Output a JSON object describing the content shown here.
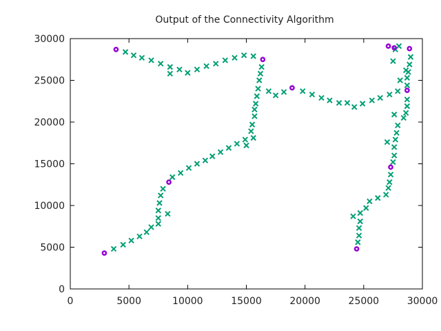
{
  "chart_data": {
    "type": "scatter",
    "title": "Output of the Connectivity Algorithm",
    "xlabel": "",
    "ylabel": "",
    "xlim": [
      0,
      30000
    ],
    "ylim": [
      0,
      30000
    ],
    "x_ticks": [
      0,
      5000,
      10000,
      15000,
      20000,
      25000,
      30000
    ],
    "y_ticks": [
      0,
      5000,
      10000,
      15000,
      20000,
      25000,
      30000
    ],
    "grid": false,
    "legend": "none",
    "series": [
      {
        "marker": "cross",
        "color": "#009e73",
        "points": [
          [
            3700,
            4800
          ],
          [
            4500,
            5300
          ],
          [
            5200,
            5800
          ],
          [
            5900,
            6300
          ],
          [
            6500,
            6800
          ],
          [
            6900,
            7400
          ],
          [
            7500,
            7800
          ],
          [
            7500,
            8500
          ],
          [
            8300,
            9000
          ],
          [
            7500,
            9400
          ],
          [
            7600,
            10300
          ],
          [
            7700,
            11200
          ],
          [
            7900,
            12000
          ],
          [
            8700,
            13400
          ],
          [
            9400,
            13900
          ],
          [
            10100,
            14500
          ],
          [
            10800,
            15000
          ],
          [
            11500,
            15400
          ],
          [
            12100,
            15900
          ],
          [
            12800,
            16400
          ],
          [
            13500,
            16900
          ],
          [
            14200,
            17400
          ],
          [
            15000,
            17200
          ],
          [
            14900,
            17900
          ],
          [
            15600,
            18100
          ],
          [
            15400,
            18900
          ],
          [
            15500,
            19700
          ],
          [
            15700,
            20700
          ],
          [
            15700,
            21500
          ],
          [
            15800,
            22200
          ],
          [
            15900,
            23100
          ],
          [
            16000,
            24000
          ],
          [
            16100,
            25000
          ],
          [
            16200,
            25800
          ],
          [
            16300,
            26600
          ],
          [
            15600,
            27900
          ],
          [
            14800,
            28000
          ],
          [
            14000,
            27700
          ],
          [
            13200,
            27400
          ],
          [
            12400,
            27000
          ],
          [
            11600,
            26700
          ],
          [
            10800,
            26300
          ],
          [
            10000,
            25900
          ],
          [
            9300,
            26300
          ],
          [
            8500,
            25800
          ],
          [
            8500,
            26600
          ],
          [
            7700,
            27000
          ],
          [
            6900,
            27400
          ],
          [
            6100,
            27700
          ],
          [
            5400,
            28000
          ],
          [
            4700,
            28400
          ],
          [
            16900,
            23700
          ],
          [
            17500,
            23200
          ],
          [
            18200,
            23600
          ],
          [
            19800,
            23700
          ],
          [
            20600,
            23300
          ],
          [
            21400,
            22900
          ],
          [
            22100,
            22600
          ],
          [
            22900,
            22300
          ],
          [
            23600,
            22300
          ],
          [
            24200,
            21800
          ],
          [
            24900,
            22200
          ],
          [
            25700,
            22600
          ],
          [
            26400,
            22900
          ],
          [
            27200,
            23300
          ],
          [
            27900,
            23700
          ],
          [
            28700,
            24400
          ],
          [
            28700,
            25300
          ],
          [
            28800,
            26000
          ],
          [
            28900,
            26900
          ],
          [
            29000,
            27800
          ],
          [
            28100,
            25000
          ],
          [
            28600,
            26200
          ],
          [
            28000,
            29100
          ],
          [
            27700,
            28700
          ],
          [
            27500,
            27300
          ],
          [
            28400,
            20500
          ],
          [
            28600,
            21100
          ],
          [
            28700,
            21900
          ],
          [
            28700,
            22700
          ],
          [
            27600,
            20900
          ],
          [
            27900,
            19600
          ],
          [
            27800,
            18700
          ],
          [
            27700,
            17900
          ],
          [
            27000,
            17600
          ],
          [
            27600,
            17000
          ],
          [
            27600,
            16000
          ],
          [
            27500,
            15200
          ],
          [
            27300,
            13700
          ],
          [
            27200,
            12800
          ],
          [
            27100,
            12100
          ],
          [
            26900,
            11300
          ],
          [
            26200,
            10900
          ],
          [
            25500,
            10500
          ],
          [
            25200,
            9700
          ],
          [
            24700,
            9100
          ],
          [
            24100,
            8700
          ],
          [
            24700,
            8100
          ],
          [
            24600,
            7300
          ],
          [
            24600,
            6400
          ],
          [
            24500,
            5600
          ]
        ]
      },
      {
        "marker": "ring",
        "color": "#9400d3",
        "points": [
          [
            2900,
            4300
          ],
          [
            3900,
            28700
          ],
          [
            8400,
            12800
          ],
          [
            16400,
            27500
          ],
          [
            18900,
            24100
          ],
          [
            27100,
            29100
          ],
          [
            27600,
            28900
          ],
          [
            28900,
            28800
          ],
          [
            28700,
            23800
          ],
          [
            27300,
            14600
          ],
          [
            24400,
            4800
          ]
        ]
      }
    ]
  }
}
